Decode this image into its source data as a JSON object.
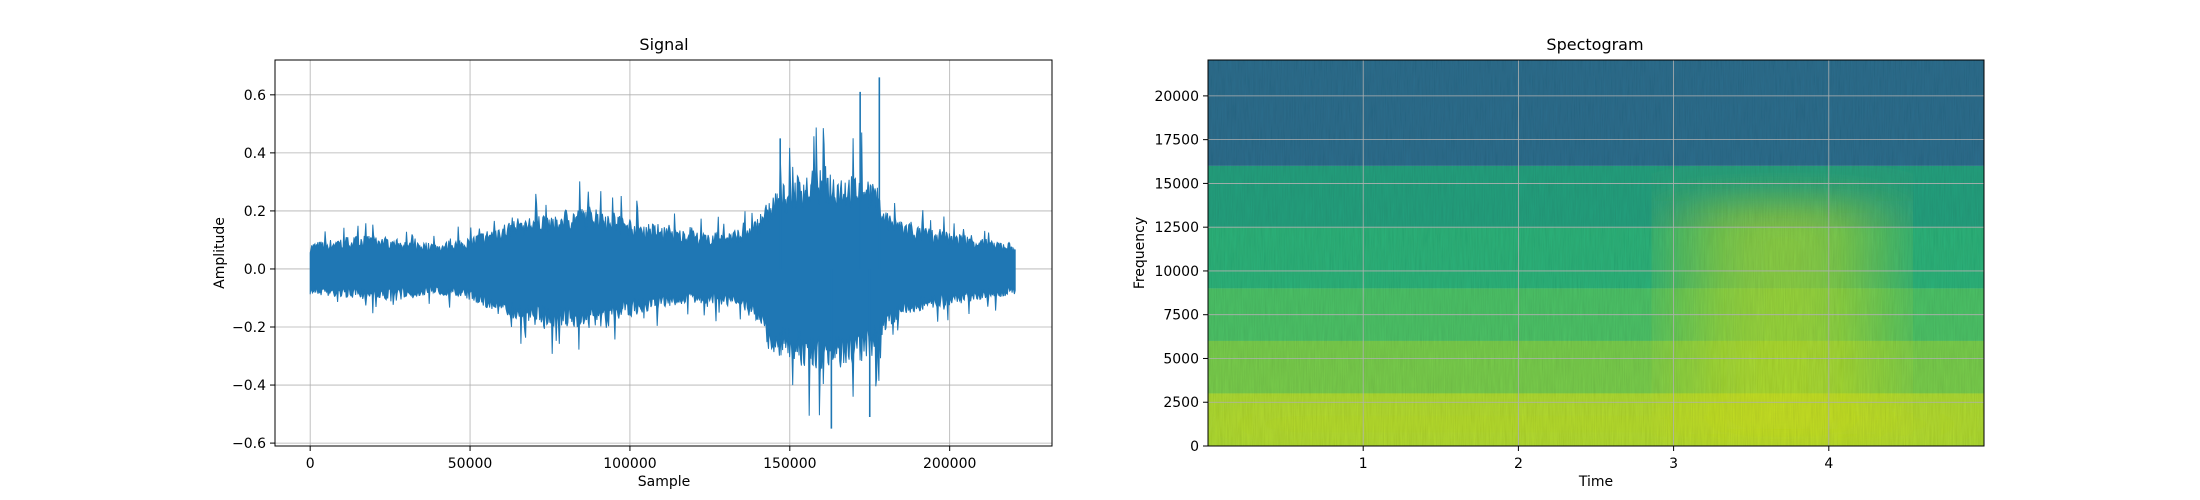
{
  "chart_data": [
    {
      "type": "line",
      "title": "Signal",
      "xlabel": "Sample",
      "ylabel": "Amplitude",
      "xlim": [
        -11000,
        232000
      ],
      "ylim": [
        -0.61,
        0.72
      ],
      "xticks": [
        0,
        50000,
        100000,
        150000,
        200000
      ],
      "xtick_labels": [
        "0",
        "50000",
        "100000",
        "150000",
        "200000"
      ],
      "yticks": [
        -0.6,
        -0.4,
        -0.2,
        0.0,
        0.2,
        0.4,
        0.6
      ],
      "ytick_labels": [
        "−0.6",
        "−0.4",
        "−0.2",
        "0.0",
        "0.2",
        "0.4",
        "0.6"
      ],
      "grid": true,
      "color": "#1f77b4",
      "envelope": {
        "x": [
          0,
          10000,
          20000,
          30000,
          40000,
          50000,
          60000,
          70000,
          80000,
          90000,
          100000,
          110000,
          120000,
          130000,
          138000,
          145000,
          150000,
          155000,
          160000,
          165000,
          170000,
          175000,
          178000,
          180000,
          185000,
          190000,
          200000,
          210000,
          220500
        ],
        "upper": [
          0.09,
          0.11,
          0.12,
          0.1,
          0.09,
          0.11,
          0.16,
          0.19,
          0.21,
          0.22,
          0.18,
          0.15,
          0.13,
          0.13,
          0.15,
          0.27,
          0.32,
          0.34,
          0.36,
          0.34,
          0.33,
          0.33,
          0.28,
          0.21,
          0.17,
          0.15,
          0.13,
          0.11,
          0.09
        ],
        "lower": [
          -0.09,
          -0.1,
          -0.11,
          -0.1,
          -0.09,
          -0.11,
          -0.17,
          -0.2,
          -0.21,
          -0.21,
          -0.17,
          -0.14,
          -0.12,
          -0.13,
          -0.16,
          -0.3,
          -0.33,
          -0.35,
          -0.37,
          -0.35,
          -0.34,
          -0.32,
          -0.28,
          -0.22,
          -0.17,
          -0.15,
          -0.13,
          -0.11,
          -0.09
        ]
      },
      "peaks": [
        {
          "x": 178000,
          "y": 0.66
        },
        {
          "x": 172000,
          "y": 0.61
        },
        {
          "x": 163000,
          "y": -0.55
        },
        {
          "x": 175000,
          "y": -0.51
        },
        {
          "x": 147000,
          "y": 0.45
        }
      ]
    },
    {
      "type": "heatmap",
      "title": "Spectogram",
      "xlabel": "Time",
      "ylabel": "Frequency",
      "xlim": [
        0,
        5.0
      ],
      "ylim": [
        0,
        22050
      ],
      "xticks": [
        1,
        2,
        3,
        4
      ],
      "xtick_labels": [
        "1",
        "2",
        "3",
        "4"
      ],
      "yticks": [
        0,
        2500,
        5000,
        7500,
        10000,
        12500,
        15000,
        17500,
        20000
      ],
      "ytick_labels": [
        "0",
        "2500",
        "5000",
        "7500",
        "10000",
        "12500",
        "15000",
        "17500",
        "20000"
      ],
      "grid": true,
      "colormap": "viridis",
      "freq_bands": [
        {
          "from": 16000,
          "to": 22050,
          "color": "#2d6e8e"
        },
        {
          "from": 12500,
          "to": 16000,
          "color": "#28a17f"
        },
        {
          "from": 9000,
          "to": 12500,
          "color": "#2fb37a"
        },
        {
          "from": 6000,
          "to": 9000,
          "color": "#4ec267"
        },
        {
          "from": 3000,
          "to": 6000,
          "color": "#79cd4e"
        },
        {
          "from": 0,
          "to": 3000,
          "color": "#a9d938"
        }
      ],
      "bright_region": {
        "time_from": 3.1,
        "time_to": 4.3,
        "freq_to": 14000,
        "color": "#d4e31e"
      }
    }
  ]
}
